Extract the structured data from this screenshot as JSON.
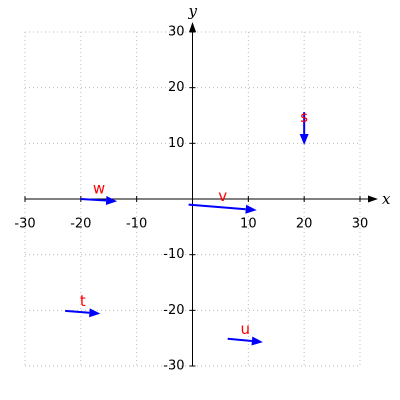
{
  "chart_data": {
    "type": "vector",
    "x_label": "x",
    "y_label": "y",
    "xlim": [
      -30,
      30
    ],
    "ylim": [
      -30,
      30
    ],
    "xticks": [
      -30,
      -20,
      -10,
      10,
      20,
      30
    ],
    "yticks": [
      -30,
      -20,
      -10,
      10,
      20,
      30
    ],
    "grid": true,
    "color": "#0000ff",
    "label_color": "#ff0000",
    "vectors": [
      {
        "name": "w",
        "x": -20,
        "y": 0,
        "dx": 6.5,
        "dy": -0.4
      },
      {
        "name": "v",
        "x": -0.7,
        "y": -1,
        "dx": 12.2,
        "dy": -1
      },
      {
        "name": "s",
        "x": 20,
        "y": 15.6,
        "dx": 0,
        "dy": -5.9
      },
      {
        "name": "t",
        "x": -22.8,
        "y": -20.1,
        "dx": 6.3,
        "dy": -0.5
      },
      {
        "name": "u",
        "x": 6.3,
        "y": -25.1,
        "dx": 6.3,
        "dy": -0.6
      }
    ]
  }
}
